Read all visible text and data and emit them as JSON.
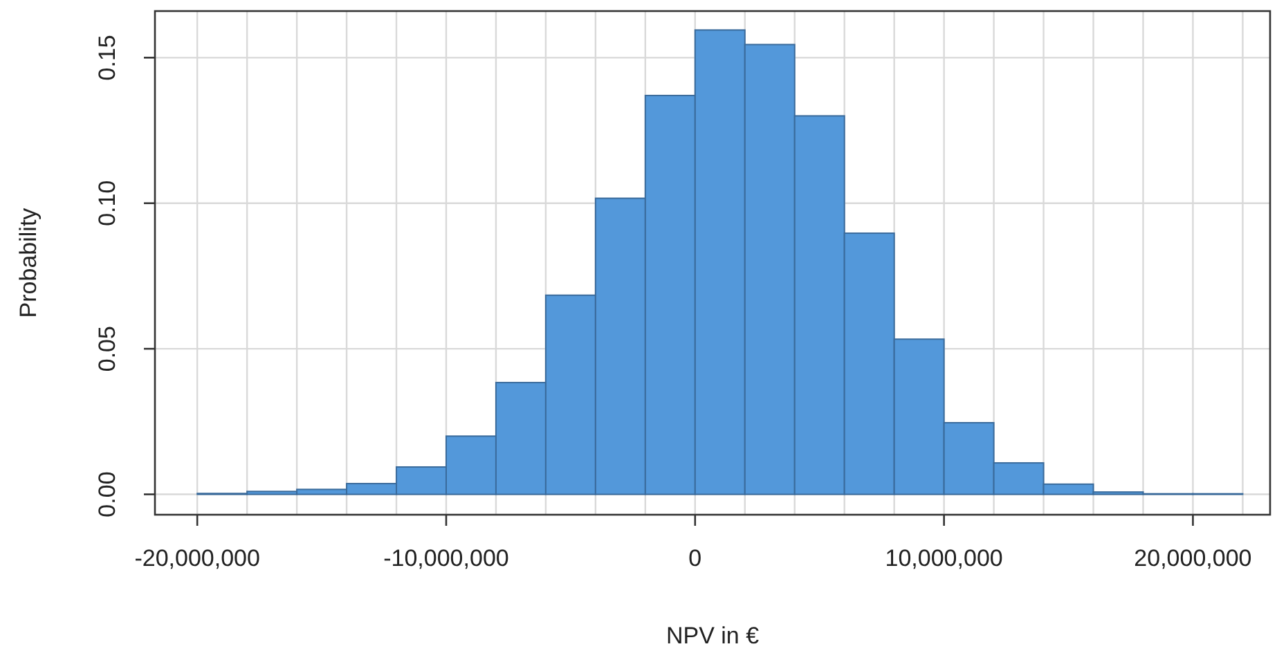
{
  "chart_data": {
    "type": "histogram",
    "xlabel": "NPV in €",
    "ylabel": "Probability",
    "bins": [
      -20000000,
      -18000000,
      -16000000,
      -14000000,
      -12000000,
      -10000000,
      -8000000,
      -6000000,
      -4000000,
      -2000000,
      0,
      2000000,
      4000000,
      6000000,
      8000000,
      10000000,
      12000000,
      14000000,
      16000000,
      18000000,
      20000000,
      22000000
    ],
    "values": [
      0.0003,
      0.001,
      0.0017,
      0.0037,
      0.0094,
      0.02,
      0.0384,
      0.0684,
      0.1017,
      0.137,
      0.1595,
      0.1545,
      0.13,
      0.0897,
      0.0533,
      0.0246,
      0.0108,
      0.0035,
      0.0008,
      0.0002,
      0.0002
    ],
    "color": "#5096d9",
    "xlim": [
      -21700000,
      23100000
    ],
    "ylim": [
      -0.007,
      0.166
    ],
    "xticks": [
      {
        "value": -20000000,
        "label": "-20,000,000"
      },
      {
        "value": -18000000,
        "label": null
      },
      {
        "value": -16000000,
        "label": null
      },
      {
        "value": -14000000,
        "label": null
      },
      {
        "value": -12000000,
        "label": null
      },
      {
        "value": -10000000,
        "label": "-10,000,000"
      },
      {
        "value": -8000000,
        "label": null
      },
      {
        "value": -6000000,
        "label": null
      },
      {
        "value": -4000000,
        "label": null
      },
      {
        "value": -2000000,
        "label": null
      },
      {
        "value": 0,
        "label": "0"
      },
      {
        "value": 2000000,
        "label": null
      },
      {
        "value": 4000000,
        "label": null
      },
      {
        "value": 6000000,
        "label": null
      },
      {
        "value": 8000000,
        "label": null
      },
      {
        "value": 10000000,
        "label": "10,000,000"
      },
      {
        "value": 12000000,
        "label": null
      },
      {
        "value": 14000000,
        "label": null
      },
      {
        "value": 16000000,
        "label": null
      },
      {
        "value": 18000000,
        "label": null
      },
      {
        "value": 20000000,
        "label": "20,000,000"
      },
      {
        "value": 22000000,
        "label": null
      }
    ],
    "yticks": [
      {
        "value": 0,
        "label": "0.00"
      },
      {
        "value": 0.05,
        "label": "0.05"
      },
      {
        "value": 0.1,
        "label": "0.10"
      },
      {
        "value": 0.15,
        "label": "0.15"
      }
    ],
    "grid": true
  }
}
